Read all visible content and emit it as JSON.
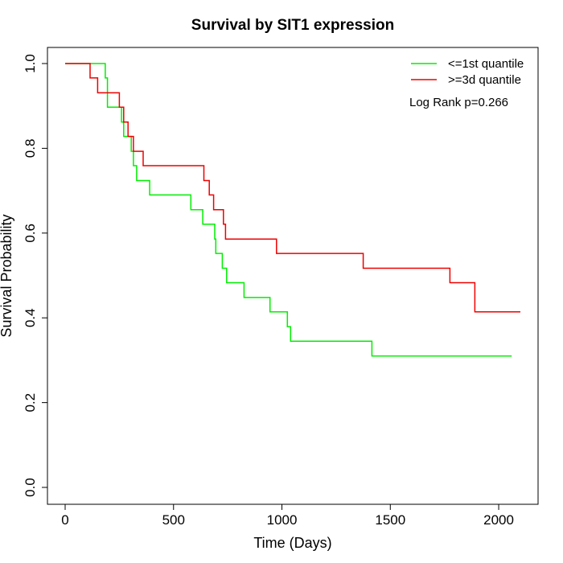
{
  "chart_data": {
    "type": "line",
    "subtype": "kaplan-meier step",
    "title": "Survival by SIT1 expression",
    "xlabel": "Time (Days)",
    "ylabel": "Survival Probability",
    "xlim": [
      0,
      2100
    ],
    "ylim": [
      0,
      1
    ],
    "xticks": [
      "0",
      "500",
      "1000",
      "1500",
      "2000"
    ],
    "yticks": [
      "0.0",
      "0.2",
      "0.4",
      "0.6",
      "0.8",
      "1.0"
    ],
    "grid": false,
    "legend_position": "top-right",
    "annotation": "Log Rank p=0.266",
    "series": [
      {
        "name": "<=1st quantile",
        "color": "#00ee00",
        "points": [
          [
            0,
            1.0
          ],
          [
            185,
            1.0
          ],
          [
            185,
            0.966
          ],
          [
            195,
            0.966
          ],
          [
            195,
            0.897
          ],
          [
            260,
            0.897
          ],
          [
            260,
            0.862
          ],
          [
            270,
            0.862
          ],
          [
            270,
            0.828
          ],
          [
            305,
            0.828
          ],
          [
            305,
            0.793
          ],
          [
            315,
            0.793
          ],
          [
            315,
            0.759
          ],
          [
            330,
            0.759
          ],
          [
            330,
            0.724
          ],
          [
            390,
            0.724
          ],
          [
            390,
            0.69
          ],
          [
            580,
            0.69
          ],
          [
            580,
            0.655
          ],
          [
            635,
            0.655
          ],
          [
            635,
            0.621
          ],
          [
            690,
            0.621
          ],
          [
            690,
            0.586
          ],
          [
            695,
            0.586
          ],
          [
            695,
            0.552
          ],
          [
            725,
            0.552
          ],
          [
            725,
            0.517
          ],
          [
            745,
            0.517
          ],
          [
            745,
            0.483
          ],
          [
            825,
            0.483
          ],
          [
            825,
            0.448
          ],
          [
            945,
            0.448
          ],
          [
            945,
            0.414
          ],
          [
            1025,
            0.414
          ],
          [
            1025,
            0.379
          ],
          [
            1040,
            0.379
          ],
          [
            1040,
            0.345
          ],
          [
            1415,
            0.345
          ],
          [
            1415,
            0.31
          ],
          [
            2060,
            0.31
          ]
        ]
      },
      {
        "name": ">=3d quantile",
        "color": "#ee0000",
        "points": [
          [
            0,
            1.0
          ],
          [
            115,
            1.0
          ],
          [
            115,
            0.966
          ],
          [
            150,
            0.966
          ],
          [
            150,
            0.931
          ],
          [
            250,
            0.931
          ],
          [
            250,
            0.897
          ],
          [
            270,
            0.897
          ],
          [
            270,
            0.862
          ],
          [
            290,
            0.862
          ],
          [
            290,
            0.828
          ],
          [
            315,
            0.828
          ],
          [
            315,
            0.793
          ],
          [
            360,
            0.793
          ],
          [
            360,
            0.759
          ],
          [
            640,
            0.759
          ],
          [
            640,
            0.724
          ],
          [
            665,
            0.724
          ],
          [
            665,
            0.69
          ],
          [
            685,
            0.69
          ],
          [
            685,
            0.655
          ],
          [
            730,
            0.655
          ],
          [
            730,
            0.621
          ],
          [
            740,
            0.621
          ],
          [
            740,
            0.586
          ],
          [
            975,
            0.586
          ],
          [
            975,
            0.552
          ],
          [
            1375,
            0.552
          ],
          [
            1375,
            0.517
          ],
          [
            1775,
            0.517
          ],
          [
            1775,
            0.483
          ],
          [
            1890,
            0.483
          ],
          [
            1890,
            0.414
          ],
          [
            2100,
            0.414
          ]
        ]
      }
    ]
  }
}
